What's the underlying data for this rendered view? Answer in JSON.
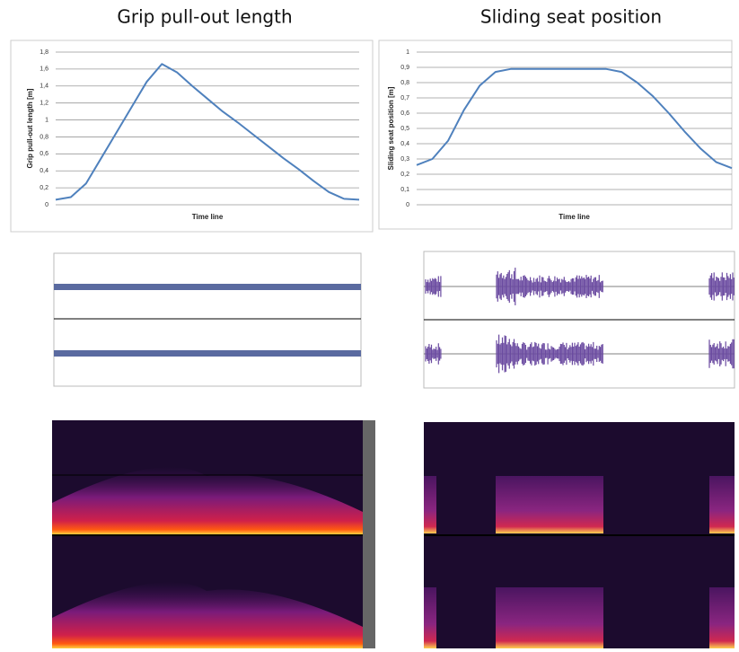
{
  "chart_data": [
    {
      "type": "line",
      "title": "Grip pull-out length",
      "ylabel": "Grip pull-out length [m]",
      "xlabel": "Time line",
      "categories": [
        null,
        null,
        null,
        null,
        null,
        null,
        null,
        null,
        null,
        null,
        null,
        null,
        null,
        null,
        null,
        null,
        null,
        null,
        null,
        null,
        null
      ],
      "values": [
        0.06,
        0.09,
        0.25,
        0.55,
        0.85,
        1.15,
        1.45,
        1.66,
        1.56,
        1.4,
        1.25,
        1.1,
        0.97,
        0.83,
        0.69,
        0.55,
        0.42,
        0.28,
        0.15,
        0.07,
        0.06
      ],
      "color": "#4f81bd",
      "ylim": [
        0,
        1.8
      ],
      "yticks": [
        0,
        {
          "value": 0.2,
          "label": "0,2"
        },
        {
          "value": 0.4,
          "label": "0,4"
        },
        {
          "value": 0.6,
          "label": "0,6"
        },
        {
          "value": 0.8,
          "label": "0,8"
        },
        1,
        {
          "value": 1.2,
          "label": "1,2"
        },
        {
          "value": 1.4,
          "label": "1,4"
        },
        {
          "value": 1.6,
          "label": "1,6"
        },
        {
          "value": 1.8,
          "label": "1,8"
        }
      ],
      "grid": true
    },
    {
      "type": "line",
      "title": "Sliding seat position",
      "ylabel": "Sliding seat position [m]",
      "xlabel": "Time line",
      "categories": [
        null,
        null,
        null,
        null,
        null,
        null,
        null,
        null,
        null,
        null,
        null,
        null,
        null,
        null,
        null,
        null,
        null,
        null,
        null,
        null,
        null
      ],
      "values": [
        0.26,
        0.3,
        0.42,
        0.62,
        0.78,
        0.87,
        0.89,
        0.89,
        0.89,
        0.89,
        0.89,
        0.89,
        0.89,
        0.87,
        0.8,
        0.71,
        0.6,
        0.48,
        0.37,
        0.28,
        0.24
      ],
      "color": "#4f81bd",
      "ylim": [
        0,
        1
      ],
      "yticks": [
        0,
        {
          "value": 0.1,
          "label": "0,1"
        },
        {
          "value": 0.2,
          "label": "0,2"
        },
        {
          "value": 0.3,
          "label": "0,3"
        },
        {
          "value": 0.4,
          "label": "0,4"
        },
        {
          "value": 0.5,
          "label": "0,5"
        },
        {
          "value": 0.6,
          "label": "0,6"
        },
        {
          "value": 0.7,
          "label": "0,7"
        },
        {
          "value": 0.8,
          "label": "0,8"
        },
        {
          "value": 0.9,
          "label": "0,9"
        },
        1
      ],
      "grid": true
    }
  ]
}
